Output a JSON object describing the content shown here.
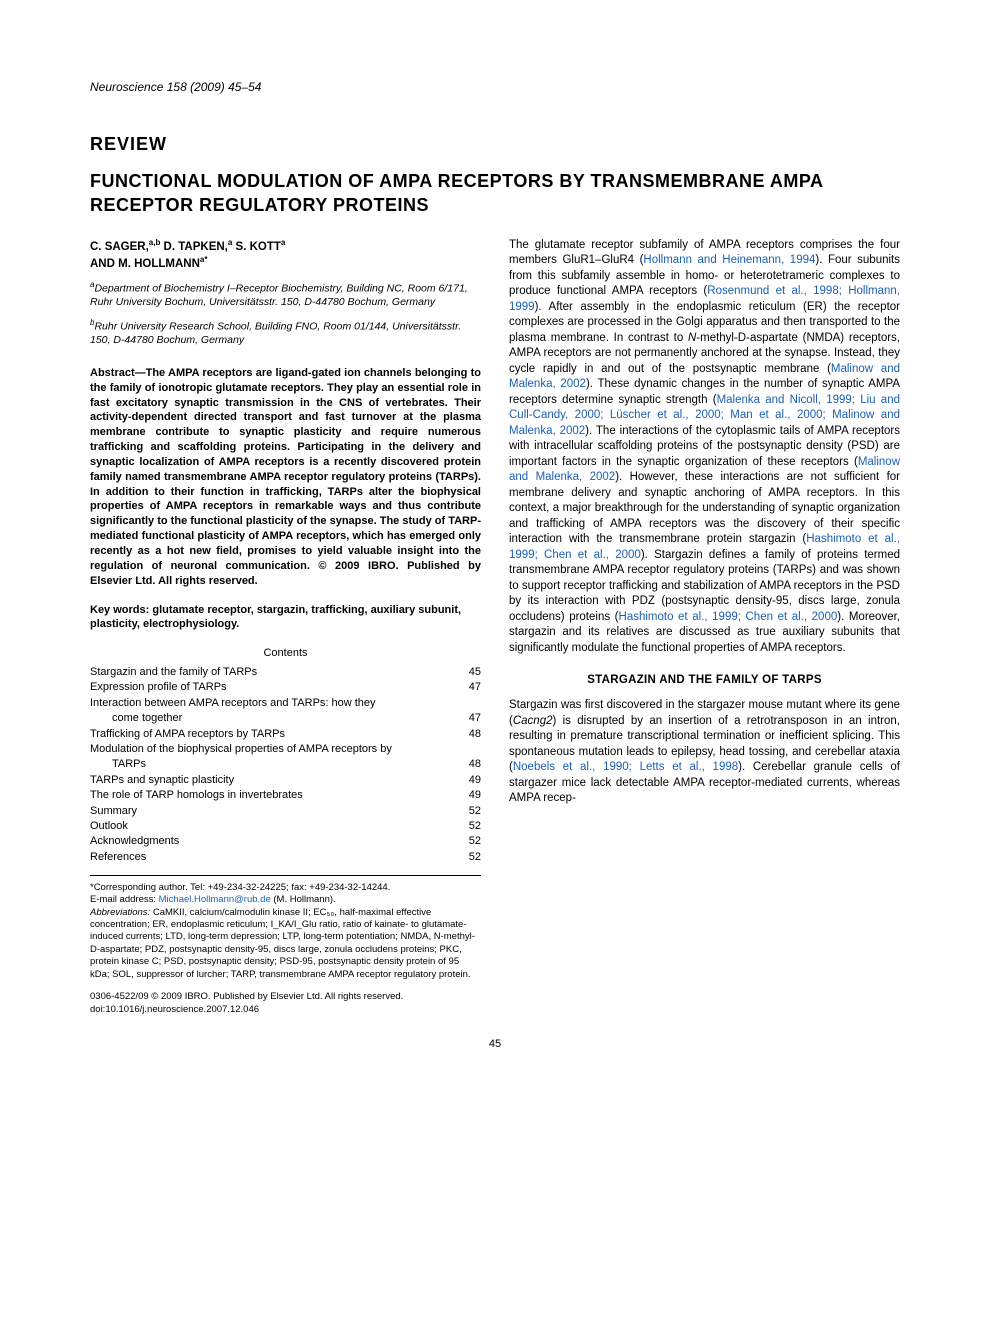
{
  "journal": {
    "name": "Neuroscience",
    "citation": "158 (2009) 45–54"
  },
  "review_label": "REVIEW",
  "title": "FUNCTIONAL MODULATION OF AMPA RECEPTORS BY TRANSMEMBRANE AMPA RECEPTOR REGULATORY PROTEINS",
  "authors_line": "C. SAGER,",
  "authors_sup1": "a,b",
  "authors_mid": " D. TAPKEN,",
  "authors_sup2": "a",
  "authors_mid2": " S. KOTT",
  "authors_sup3": "a",
  "authors_and": "AND M. HOLLMANN",
  "authors_sup4": "a*",
  "affil_a_sup": "a",
  "affil_a": "Department of Biochemistry I–Receptor Biochemistry, Building NC, Room 6/171, Ruhr University Bochum, Universitätsstr. 150, D-44780 Bochum, Germany",
  "affil_b_sup": "b",
  "affil_b": "Ruhr University Research School, Building FNO, Room 01/144, Universitätsstr. 150, D-44780 Bochum, Germany",
  "abstract": "Abstract—The AMPA receptors are ligand-gated ion channels belonging to the family of ionotropic glutamate receptors. They play an essential role in fast excitatory synaptic transmission in the CNS of vertebrates. Their activity-dependent directed transport and fast turnover at the plasma membrane contribute to synaptic plasticity and require numerous trafficking and scaffolding proteins. Participating in the delivery and synaptic localization of AMPA receptors is a recently discovered protein family named transmembrane AMPA receptor regulatory proteins (TARPs). In addition to their function in trafficking, TARPs alter the biophysical properties of AMPA receptors in remarkable ways and thus contribute significantly to the functional plasticity of the synapse. The study of TARP-mediated functional plasticity of AMPA receptors, which has emerged only recently as a hot new field, promises to yield valuable insight into the regulation of neuronal communication. © 2009 IBRO. Published by Elsevier Ltd. All rights reserved.",
  "keywords": "Key words: glutamate receptor, stargazin, trafficking, auxiliary subunit, plasticity, electrophysiology.",
  "contents_header": "Contents",
  "toc": [
    {
      "label": "Stargazin and the family of TARPs",
      "page": "45",
      "indent": false
    },
    {
      "label": "Expression profile of TARPs",
      "page": "47",
      "indent": false
    },
    {
      "label": "Interaction between AMPA receptors and TARPs: how they",
      "page": "",
      "indent": false
    },
    {
      "label": "come together",
      "page": "47",
      "indent": true
    },
    {
      "label": "Trafficking of AMPA receptors by TARPs",
      "page": "48",
      "indent": false
    },
    {
      "label": "Modulation of the biophysical properties of AMPA receptors by",
      "page": "",
      "indent": false
    },
    {
      "label": "TARPs",
      "page": "48",
      "indent": true
    },
    {
      "label": "TARPs and synaptic plasticity",
      "page": "49",
      "indent": false
    },
    {
      "label": "The role of TARP homologs in invertebrates",
      "page": "49",
      "indent": false
    },
    {
      "label": "Summary",
      "page": "52",
      "indent": false
    },
    {
      "label": "Outlook",
      "page": "52",
      "indent": false
    },
    {
      "label": "Acknowledgments",
      "page": "52",
      "indent": false
    },
    {
      "label": "References",
      "page": "52",
      "indent": false
    }
  ],
  "footnote_corr": "*Corresponding author. Tel: +49-234-32-24225; fax: +49-234-32-14244.",
  "footnote_email_label": "E-mail address: ",
  "footnote_email": "Michael.Hollmann@rub.de",
  "footnote_email_tail": " (M. Hollmann).",
  "footnote_abbrev_label": "Abbreviations:",
  "footnote_abbrev": " CaMKII, calcium/calmodulin kinase II; EC₅₀, half-maximal effective concentration; ER, endoplasmic reticulum; I_KA/I_Glu ratio, ratio of kainate- to glutamate-induced currents; LTD, long-term depression; LTP, long-term potentiation; NMDA, N-methyl-D-aspartate; PDZ, postsynaptic density-95, discs large, zonula occludens proteins; PKC, protein kinase C; PSD, postsynaptic density; PSD-95, postsynaptic density protein of 95 kDa; SOL, suppressor of lurcher; TARP, transmembrane AMPA receptor regulatory protein.",
  "copyright": "0306-4522/09 © 2009 IBRO. Published by Elsevier Ltd. All rights reserved.",
  "doi": "doi:10.1016/j.neuroscience.2007.12.046",
  "body": {
    "p1a": "The glutamate receptor subfamily of AMPA receptors comprises the four members GluR1–GluR4 (",
    "l1": "Hollmann and Heinemann, 1994",
    "p1b": "). Four subunits from this subfamily assemble in homo- or heterotetrameric complexes to produce functional AMPA receptors (",
    "l2": "Rosenmund et al., 1998; Hollmann, 1999",
    "p1c": "). After assembly in the endoplasmic reticulum (ER) the receptor complexes are processed in the Golgi apparatus and then transported to the plasma membrane. In contrast to ",
    "p1c_i": "N",
    "p1c2": "-methyl-D-aspartate (NMDA) receptors, AMPA receptors are not permanently anchored at the synapse. Instead, they cycle rapidly in and out of the postsynaptic membrane (",
    "l3": "Malinow and Malenka, 2002",
    "p1d": "). These dynamic changes in the number of synaptic AMPA receptors determine synaptic strength (",
    "l4": "Malenka and Nicoll, 1999; Liu and Cull-Candy, 2000; Lüscher et al., 2000; Man et al., 2000; Malinow and Malenka, 2002",
    "p1e": "). The interactions of the cytoplasmic tails of AMPA receptors with intracellular scaffolding proteins of the postsynaptic density (PSD) are important factors in the synaptic organization of these receptors (",
    "l5": "Malinow and Malenka, 2002",
    "p1f": "). However, these interactions are not sufficient for membrane delivery and synaptic anchoring of AMPA receptors. In this context, a major breakthrough for the understanding of synaptic organization and trafficking of AMPA receptors was the discovery of their specific interaction with the transmembrane protein stargazin (",
    "l6": "Hashimoto et al., 1999; Chen et al., 2000",
    "p1g": "). Stargazin defines a family of proteins termed transmembrane AMPA receptor regulatory proteins (TARPs) and was shown to support receptor trafficking and stabilization of AMPA receptors in the PSD by its interaction with PDZ (postsynaptic density-95, discs large, zonula occludens) proteins (",
    "l7": "Hashimoto et al., 1999; Chen et al., 2000",
    "p1h": "). Moreover, stargazin and its relatives are discussed as true auxiliary subunits that significantly modulate the functional properties of AMPA receptors."
  },
  "section1": "STARGAZIN AND THE FAMILY OF TARPS",
  "body2": {
    "p2a": "Stargazin was first discovered in the stargazer mouse mutant where its gene (",
    "p2a_i": "Cacng2",
    "p2b": ") is disrupted by an insertion of a retrotransposon in an intron, resulting in premature transcriptional termination or inefficient splicing. This spontaneous mutation leads to epilepsy, head tossing, and cerebellar ataxia (",
    "l8": "Noebels et al., 1990; Letts et al., 1998",
    "p2c": "). Cerebellar granule cells of stargazer mice lack detectable AMPA receptor-mediated currents, whereas AMPA recep-"
  },
  "pagenum": "45"
}
